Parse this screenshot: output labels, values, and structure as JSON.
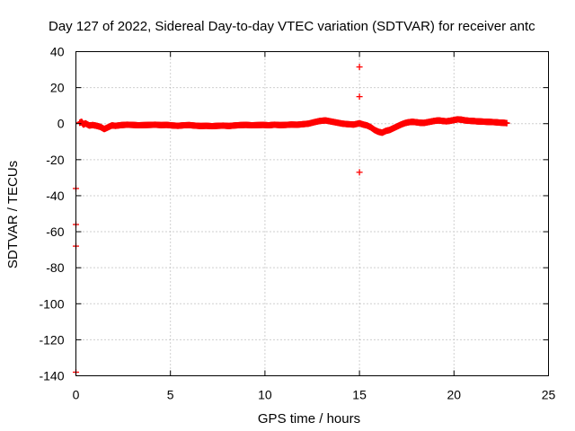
{
  "chart_data": {
    "type": "scatter",
    "title": "Day 127 of 2022, Sidereal Day-to-day VTEC variation (SDTVAR) for receiver antc",
    "xlabel": "GPS time / hours",
    "ylabel": "SDTVAR / TECUs",
    "xlim": [
      0,
      25
    ],
    "ylim": [
      -140,
      40
    ],
    "xticks": [
      0,
      5,
      10,
      15,
      20,
      25
    ],
    "yticks": [
      40,
      20,
      0,
      -20,
      -40,
      -60,
      -80,
      -100,
      -120,
      -140
    ],
    "grid": true,
    "marker": "+",
    "color": "#ff0000",
    "series": [
      {
        "name": "SDTVAR",
        "points": [
          [
            0.0,
            -36
          ],
          [
            0.0,
            -56
          ],
          [
            0.0,
            -68
          ],
          [
            0.0,
            -138
          ],
          [
            0.2,
            0.5
          ],
          [
            0.3,
            1.0
          ],
          [
            0.4,
            -0.5
          ],
          [
            0.5,
            0.2
          ],
          [
            0.7,
            -1.0
          ],
          [
            0.9,
            -0.8
          ],
          [
            1.1,
            -1.2
          ],
          [
            1.3,
            -1.8
          ],
          [
            1.5,
            -3.0
          ],
          [
            1.7,
            -2.0
          ],
          [
            1.9,
            -1.0
          ],
          [
            2.1,
            -1.2
          ],
          [
            2.4,
            -0.8
          ],
          [
            2.7,
            -0.6
          ],
          [
            3.0,
            -0.7
          ],
          [
            3.3,
            -0.9
          ],
          [
            3.6,
            -0.8
          ],
          [
            3.9,
            -0.7
          ],
          [
            4.2,
            -0.6
          ],
          [
            4.5,
            -0.8
          ],
          [
            4.8,
            -0.7
          ],
          [
            5.1,
            -1.0
          ],
          [
            5.4,
            -1.2
          ],
          [
            5.7,
            -0.9
          ],
          [
            6.0,
            -0.8
          ],
          [
            6.3,
            -1.1
          ],
          [
            6.6,
            -1.3
          ],
          [
            6.9,
            -1.2
          ],
          [
            7.2,
            -1.4
          ],
          [
            7.5,
            -1.2
          ],
          [
            7.8,
            -1.1
          ],
          [
            8.1,
            -1.3
          ],
          [
            8.4,
            -1.0
          ],
          [
            8.7,
            -0.8
          ],
          [
            9.0,
            -0.7
          ],
          [
            9.3,
            -0.9
          ],
          [
            9.6,
            -0.8
          ],
          [
            9.9,
            -0.7
          ],
          [
            10.2,
            -0.9
          ],
          [
            10.5,
            -0.6
          ],
          [
            10.8,
            -0.8
          ],
          [
            11.1,
            -0.7
          ],
          [
            11.4,
            -0.5
          ],
          [
            11.7,
            -0.6
          ],
          [
            12.0,
            -0.3
          ],
          [
            12.3,
            0.0
          ],
          [
            12.6,
            0.8
          ],
          [
            12.9,
            1.5
          ],
          [
            13.2,
            1.8
          ],
          [
            13.5,
            1.2
          ],
          [
            13.8,
            0.6
          ],
          [
            14.1,
            0.0
          ],
          [
            14.4,
            -0.3
          ],
          [
            14.7,
            -0.5
          ],
          [
            15.0,
            31.5
          ],
          [
            15.0,
            15.0
          ],
          [
            15.0,
            -27.0
          ],
          [
            15.0,
            0.2
          ],
          [
            15.2,
            -0.5
          ],
          [
            15.4,
            -1.0
          ],
          [
            15.6,
            -2.0
          ],
          [
            15.8,
            -3.5
          ],
          [
            16.0,
            -4.5
          ],
          [
            16.2,
            -5.0
          ],
          [
            16.4,
            -4.0
          ],
          [
            16.6,
            -3.5
          ],
          [
            16.8,
            -2.5
          ],
          [
            17.0,
            -1.5
          ],
          [
            17.2,
            -0.5
          ],
          [
            17.4,
            0.3
          ],
          [
            17.6,
            0.8
          ],
          [
            17.8,
            1.0
          ],
          [
            18.0,
            0.8
          ],
          [
            18.2,
            0.5
          ],
          [
            18.4,
            0.4
          ],
          [
            18.6,
            0.8
          ],
          [
            18.8,
            1.2
          ],
          [
            19.0,
            1.6
          ],
          [
            19.2,
            1.8
          ],
          [
            19.4,
            1.5
          ],
          [
            19.6,
            1.3
          ],
          [
            19.8,
            1.6
          ],
          [
            20.0,
            2.0
          ],
          [
            20.2,
            2.4
          ],
          [
            20.4,
            2.2
          ],
          [
            20.6,
            1.8
          ],
          [
            20.8,
            1.6
          ],
          [
            21.0,
            1.5
          ],
          [
            21.2,
            1.3
          ],
          [
            21.4,
            1.2
          ],
          [
            21.6,
            1.1
          ],
          [
            21.8,
            1.0
          ],
          [
            22.0,
            0.9
          ],
          [
            22.2,
            0.8
          ],
          [
            22.4,
            0.6
          ],
          [
            22.6,
            0.5
          ],
          [
            22.8,
            0.3
          ]
        ]
      }
    ]
  }
}
